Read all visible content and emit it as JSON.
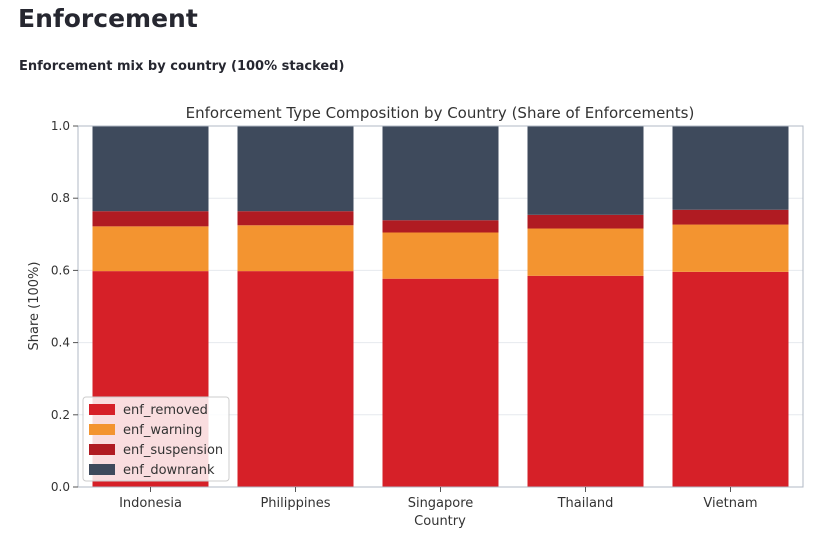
{
  "page": {
    "title": "Enforcement",
    "subtitle": "Enforcement mix by country (100% stacked)"
  },
  "colors": {
    "enf_removed": "#d62028",
    "enf_warning": "#f39430",
    "enf_suspension": "#b01b22",
    "enf_downrank": "#3e4a5c"
  },
  "chart_data": {
    "type": "bar",
    "stacked": true,
    "title": "Enforcement Type Composition by Country (Share of Enforcements)",
    "xlabel": "Country",
    "ylabel": "Share (100%)",
    "ylim": [
      0,
      1
    ],
    "yticks": [
      "0.0",
      "0.2",
      "0.4",
      "0.6",
      "0.8",
      "1.0"
    ],
    "categories": [
      "Indonesia",
      "Philippines",
      "Singapore",
      "Thailand",
      "Vietnam"
    ],
    "legend_position": "lower-left",
    "grid": true,
    "series": [
      {
        "name": "enf_removed",
        "values": [
          0.598,
          0.598,
          0.577,
          0.585,
          0.596
        ]
      },
      {
        "name": "enf_warning",
        "values": [
          0.124,
          0.127,
          0.128,
          0.131,
          0.131
        ]
      },
      {
        "name": "enf_suspension",
        "values": [
          0.042,
          0.039,
          0.034,
          0.038,
          0.041
        ]
      },
      {
        "name": "enf_downrank",
        "values": [
          0.236,
          0.236,
          0.261,
          0.246,
          0.232
        ]
      }
    ]
  }
}
